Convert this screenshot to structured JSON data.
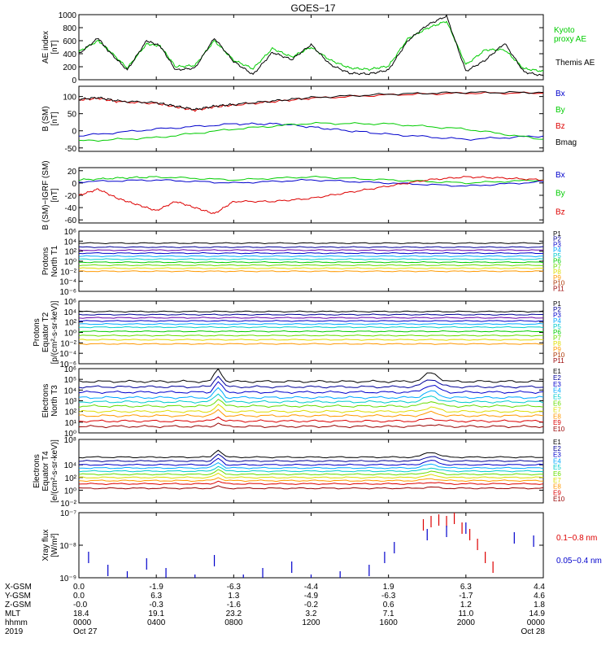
{
  "title": "GOES−17",
  "colors": {
    "black": "#000000",
    "green": "#00cc00",
    "blue": "#0000cc",
    "red": "#dd0000",
    "navy": "#000099",
    "purple": "#6600aa",
    "cyan": "#00aaff",
    "teal": "#00cccc",
    "lime": "#66dd00",
    "yellow": "#dddd00",
    "orange": "#ff9900",
    "brown": "#aa3300",
    "darkred": "#990000"
  },
  "x_axis": {
    "rows": [
      {
        "label": "X-GSM",
        "values": [
          "0.0",
          "-1.9",
          "-6.3",
          "-4.4",
          "1.9",
          "6.3",
          "4.4"
        ]
      },
      {
        "label": "Y-GSM",
        "values": [
          "0.0",
          "6.3",
          "1.3",
          "-4.9",
          "-6.3",
          "-1.7",
          "4.6"
        ]
      },
      {
        "label": "Z-GSM",
        "values": [
          "-0.0",
          "-0.3",
          "-1.6",
          "-0.2",
          "0.6",
          "1.2",
          "1.8"
        ]
      },
      {
        "label": "MLT",
        "values": [
          "18.4",
          "19.1",
          "23.2",
          "3.2",
          "7.1",
          "11.0",
          "14.9"
        ]
      },
      {
        "label": "hhmm",
        "values": [
          "0000",
          "0400",
          "0800",
          "1200",
          "1600",
          "2000",
          "0000"
        ]
      },
      {
        "label": "2019",
        "values": [
          "Oct 27",
          "",
          "",
          "",
          "",
          "",
          "Oct 28"
        ]
      }
    ],
    "hours": [
      0,
      4,
      8,
      12,
      16,
      20,
      24
    ]
  },
  "chart_data": [
    {
      "type": "line",
      "ylabel": "AE index\n[nT]",
      "ylim": [
        0,
        1000
      ],
      "yticks": [
        "0",
        "200",
        "400",
        "600",
        "800",
        "1000"
      ],
      "ytick_values": [
        0,
        200,
        400,
        600,
        800,
        1000
      ],
      "legend": [
        {
          "text": "Kyoto\nproxy AE",
          "color": "green"
        },
        {
          "text": "Themis AE",
          "color": "black"
        }
      ],
      "series": [
        {
          "name": "Kyoto proxy AE",
          "color": "green",
          "x": [
            0,
            1,
            1.5,
            2.5,
            3.5,
            4.2,
            5,
            6,
            7,
            8,
            9,
            10,
            11,
            12,
            13,
            14,
            15,
            16,
            17,
            18,
            19,
            20,
            21,
            22,
            23,
            24
          ],
          "y": [
            430,
            600,
            470,
            180,
            550,
            520,
            200,
            220,
            600,
            300,
            170,
            480,
            350,
            500,
            300,
            180,
            160,
            210,
            630,
            790,
            900,
            230,
            460,
            460,
            170,
            130
          ]
        },
        {
          "name": "Themis AE",
          "color": "black",
          "x": [
            0,
            1,
            1.5,
            2.5,
            3.5,
            4.2,
            5,
            6,
            7,
            8,
            9,
            10,
            11,
            12,
            13,
            14,
            15,
            16,
            17,
            18,
            19,
            20,
            21,
            22,
            23,
            24
          ],
          "y": [
            400,
            640,
            450,
            150,
            600,
            520,
            150,
            180,
            640,
            280,
            80,
            420,
            310,
            540,
            230,
            100,
            90,
            150,
            600,
            840,
            980,
            130,
            300,
            560,
            120,
            60
          ]
        }
      ]
    },
    {
      "type": "line",
      "ylabel": "B (SM)\n[nT]",
      "ylim": [
        -60,
        130
      ],
      "yticks": [
        "-50",
        "0",
        "50",
        "100"
      ],
      "ytick_values": [
        -50,
        0,
        50,
        100
      ],
      "legend": [
        {
          "text": "Bx",
          "color": "blue"
        },
        {
          "text": "By",
          "color": "green"
        },
        {
          "text": "Bz",
          "color": "red"
        },
        {
          "text": "Bmag",
          "color": "black"
        }
      ],
      "series": [
        {
          "name": "Bx",
          "color": "blue",
          "x": [
            0,
            4,
            8,
            10.5,
            13,
            16,
            20,
            24
          ],
          "y": [
            -15,
            5,
            20,
            20,
            5,
            -10,
            -25,
            -15
          ]
        },
        {
          "name": "By",
          "color": "green",
          "x": [
            0,
            4,
            8,
            12,
            16,
            20,
            24
          ],
          "y": [
            -30,
            -20,
            5,
            22,
            20,
            5,
            -25
          ]
        },
        {
          "name": "Bz",
          "color": "red",
          "x": [
            0,
            1,
            2,
            4,
            5,
            6,
            7,
            8,
            10,
            12,
            16,
            20,
            24
          ],
          "y": [
            90,
            95,
            85,
            80,
            70,
            60,
            70,
            75,
            85,
            95,
            105,
            110,
            110
          ]
        },
        {
          "name": "Bmag",
          "color": "black",
          "x": [
            0,
            1,
            2,
            4,
            5,
            6,
            7,
            8,
            10,
            12,
            16,
            20,
            24
          ],
          "y": [
            92,
            97,
            87,
            82,
            72,
            62,
            72,
            77,
            87,
            97,
            107,
            112,
            112
          ]
        }
      ]
    },
    {
      "type": "line",
      "ylabel": "B (SM)−IGRF (SM)\n[nT]",
      "ylim": [
        -65,
        25
      ],
      "yticks": [
        "-60",
        "-40",
        "-20",
        "0",
        "20"
      ],
      "ytick_values": [
        -60,
        -40,
        -20,
        0,
        20
      ],
      "legend": [
        {
          "text": "Bx",
          "color": "blue"
        },
        {
          "text": "By",
          "color": "green"
        },
        {
          "text": "Bz",
          "color": "red"
        }
      ],
      "series": [
        {
          "name": "Bx",
          "color": "blue",
          "x": [
            0,
            4,
            8,
            12,
            16,
            20,
            24
          ],
          "y": [
            2,
            5,
            0,
            5,
            0,
            -5,
            2
          ]
        },
        {
          "name": "By",
          "color": "green",
          "x": [
            0,
            2,
            4,
            8,
            12,
            16,
            20,
            24
          ],
          "y": [
            5,
            8,
            10,
            5,
            10,
            5,
            0,
            5
          ]
        },
        {
          "name": "Bz",
          "color": "red",
          "x": [
            0,
            1,
            2,
            3,
            4,
            5,
            6,
            7,
            8,
            10,
            12,
            14,
            16,
            18,
            20,
            22,
            24
          ],
          "y": [
            -20,
            -10,
            -25,
            -35,
            -45,
            -30,
            -40,
            -50,
            -30,
            -30,
            -25,
            -15,
            -5,
            5,
            10,
            8,
            5
          ]
        }
      ]
    },
    {
      "type": "line",
      "ylabel": "Protons\nNorth T1",
      "ylog": true,
      "ylim": [
        -6,
        6
      ],
      "yticks": [
        "10⁶",
        "10⁴",
        "10²",
        "10⁰",
        "10⁻²",
        "10⁻⁴",
        "10⁻⁶"
      ],
      "ytick_values": [
        6,
        4,
        2,
        0,
        -2,
        -4,
        -6
      ],
      "legend": [
        {
          "text": "P1",
          "color": "black"
        },
        {
          "text": "P2",
          "color": "navy"
        },
        {
          "text": "P3",
          "color": "blue"
        },
        {
          "text": "P4",
          "color": "cyan"
        },
        {
          "text": "P5",
          "color": "teal"
        },
        {
          "text": "P6",
          "color": "green"
        },
        {
          "text": "P7",
          "color": "lime"
        },
        {
          "text": "P8",
          "color": "yellow"
        },
        {
          "text": "P9",
          "color": "orange"
        },
        {
          "text": "P10",
          "color": "brown"
        },
        {
          "text": "P11",
          "color": "darkred"
        }
      ],
      "level_colors": [
        "black",
        "navy",
        "purple",
        "blue",
        "cyan",
        "teal",
        "green",
        "lime",
        "yellow",
        "orange"
      ],
      "level_values": [
        3.6,
        2.8,
        2.2,
        1.6,
        1.0,
        0.4,
        -0.2,
        -0.8,
        -1.4,
        -2.0
      ]
    },
    {
      "type": "line",
      "ylabel": "Protons\nEquator T2\n[p/(cm²-s-sr-keV)]",
      "ylog": true,
      "ylim": [
        -6,
        6
      ],
      "yticks": [
        "10⁶",
        "10⁴",
        "10²",
        "10⁰",
        "10⁻²",
        "10⁻⁴",
        "10⁻⁶"
      ],
      "ytick_values": [
        6,
        4,
        2,
        0,
        -2,
        -4,
        -6
      ],
      "legend": [
        {
          "text": "P1",
          "color": "black"
        },
        {
          "text": "P2",
          "color": "navy"
        },
        {
          "text": "P3",
          "color": "blue"
        },
        {
          "text": "P4",
          "color": "cyan"
        },
        {
          "text": "P5",
          "color": "teal"
        },
        {
          "text": "P6",
          "color": "green"
        },
        {
          "text": "P7",
          "color": "lime"
        },
        {
          "text": "P8",
          "color": "yellow"
        },
        {
          "text": "P9",
          "color": "orange"
        },
        {
          "text": "P10",
          "color": "brown"
        },
        {
          "text": "P11",
          "color": "darkred"
        }
      ],
      "level_colors": [
        "black",
        "navy",
        "purple",
        "blue",
        "cyan",
        "teal",
        "green",
        "lime",
        "yellow",
        "orange"
      ],
      "level_values": [
        4.0,
        3.4,
        2.8,
        2.2,
        1.6,
        1.0,
        0.2,
        -0.6,
        -1.4,
        -2.2
      ]
    },
    {
      "type": "line",
      "ylabel": "Electrons\nNorth T3",
      "ylog": true,
      "ylim": [
        0,
        6
      ],
      "yticks": [
        "10⁶",
        "10⁵",
        "10⁴",
        "10³",
        "10²",
        "10¹",
        "10⁰"
      ],
      "ytick_values": [
        6,
        5,
        4,
        3,
        2,
        1,
        0
      ],
      "legend": [
        {
          "text": "E1",
          "color": "black"
        },
        {
          "text": "E2",
          "color": "navy"
        },
        {
          "text": "E3",
          "color": "blue"
        },
        {
          "text": "E4",
          "color": "cyan"
        },
        {
          "text": "E5",
          "color": "teal"
        },
        {
          "text": "E6",
          "color": "lime"
        },
        {
          "text": "E7",
          "color": "yellow"
        },
        {
          "text": "E8",
          "color": "orange"
        },
        {
          "text": "E9",
          "color": "red"
        },
        {
          "text": "E10",
          "color": "darkred"
        }
      ],
      "level_colors": [
        "black",
        "navy",
        "blue",
        "cyan",
        "teal",
        "lime",
        "yellow",
        "orange",
        "red",
        "darkred"
      ],
      "level_values": [
        4.8,
        4.3,
        3.8,
        3.3,
        2.9,
        2.5,
        2.0,
        1.6,
        1.1,
        0.6
      ]
    },
    {
      "type": "line",
      "ylabel": "Electrons\nEquator T4\n[e/(cm²-s-sr-keV)]",
      "ylog": true,
      "ylim": [
        -2,
        8
      ],
      "yticks": [
        "10⁸",
        "10⁴",
        "10²",
        "10⁰",
        "10⁻²"
      ],
      "ytick_values": [
        8,
        4,
        2,
        0,
        -2
      ],
      "legend": [
        {
          "text": "E1",
          "color": "black"
        },
        {
          "text": "E2",
          "color": "navy"
        },
        {
          "text": "E3",
          "color": "blue"
        },
        {
          "text": "E4",
          "color": "cyan"
        },
        {
          "text": "E5",
          "color": "teal"
        },
        {
          "text": "E6",
          "color": "lime"
        },
        {
          "text": "E7",
          "color": "yellow"
        },
        {
          "text": "E8",
          "color": "orange"
        },
        {
          "text": "E9",
          "color": "red"
        },
        {
          "text": "E10",
          "color": "darkred"
        }
      ],
      "level_colors": [
        "black",
        "navy",
        "blue",
        "cyan",
        "teal",
        "lime",
        "yellow",
        "orange",
        "red",
        "darkred"
      ],
      "level_values": [
        5.2,
        4.6,
        4.0,
        3.5,
        3.0,
        2.5,
        2.0,
        1.5,
        1.0,
        0.3
      ]
    },
    {
      "type": "scatter",
      "ylabel": "Xray flux\n[W/m²]",
      "ylog": true,
      "ylim": [
        -9,
        -7
      ],
      "yticks": [
        "10⁻⁷",
        "10⁻⁸",
        "10⁻⁹"
      ],
      "ytick_values": [
        -7,
        -8,
        -9
      ],
      "legend": [
        {
          "text": "0.1−0.8 nm",
          "color": "red"
        },
        {
          "text": "0.05−0.4 nm",
          "color": "blue"
        }
      ],
      "series": [
        {
          "name": "0.1−0.8 nm",
          "color": "red",
          "x": [
            17.8,
            18.2,
            18.6,
            19.0,
            19.4,
            19.8,
            20.2,
            20.6,
            21.0,
            21.4
          ],
          "y": [
            -7.2,
            -7.1,
            -7.05,
            -7.1,
            -7.0,
            -7.3,
            -7.5,
            -7.8,
            -8.2,
            -8.5
          ]
        },
        {
          "name": "0.05−0.4 nm",
          "color": "blue",
          "x": [
            0.5,
            1.5,
            2.5,
            3.5,
            4.5,
            6.0,
            7.0,
            8.5,
            9.5,
            11.0,
            12.0,
            13.5,
            15.0,
            15.8,
            16.3,
            18.0,
            19.0,
            20.0,
            22.5,
            23.5
          ],
          "y": [
            -8.2,
            -8.6,
            -8.8,
            -8.4,
            -8.7,
            -8.9,
            -8.3,
            -8.9,
            -8.7,
            -8.5,
            -8.9,
            -8.8,
            -8.6,
            -8.2,
            -7.9,
            -7.5,
            -7.4,
            -7.3,
            -7.6,
            -7.7
          ]
        }
      ]
    }
  ]
}
